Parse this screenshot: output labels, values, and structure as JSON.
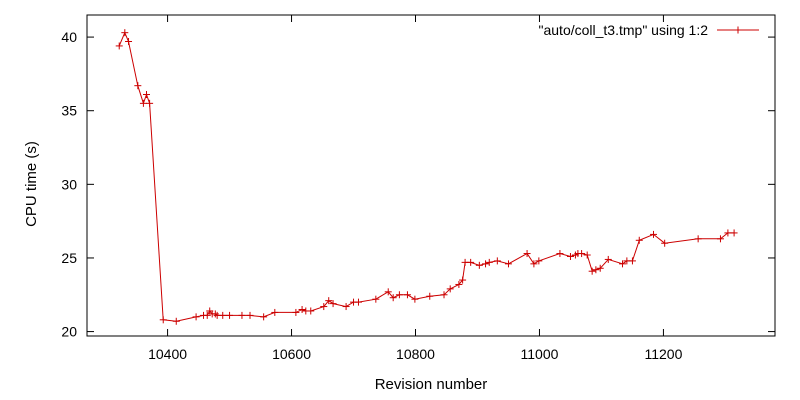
{
  "chart_data": {
    "type": "line",
    "title": "",
    "xlabel": "Revision number",
    "ylabel": "CPU time (s)",
    "xlim": [
      10270,
      11380
    ],
    "ylim": [
      19.7,
      41.5
    ],
    "xticks": [
      10400,
      10600,
      10800,
      11000,
      11200
    ],
    "yticks": [
      20,
      25,
      30,
      35,
      40
    ],
    "grid": false,
    "legend_position": "top-right",
    "color": "#cc0000",
    "marker": "plus",
    "series": [
      {
        "name": "\"auto/coll_t3.tmp\" using 1:2",
        "x": [
          10322,
          10331,
          10337,
          10352,
          10361,
          10366,
          10371,
          10393,
          10414,
          10446,
          10458,
          10464,
          10468,
          10472,
          10477,
          10480,
          10489,
          10500,
          10520,
          10533,
          10555,
          10573,
          10607,
          10617,
          10623,
          10631,
          10652,
          10660,
          10667,
          10688,
          10700,
          10708,
          10736,
          10756,
          10764,
          10774,
          10787,
          10799,
          10823,
          10846,
          10856,
          10870,
          10876,
          10880,
          10889,
          10903,
          10913,
          10919,
          10932,
          10950,
          10980,
          10991,
          10999,
          11033,
          11050,
          11058,
          11062,
          11068,
          11077,
          11085,
          11091,
          11098,
          11111,
          11134,
          11141,
          11150,
          11161,
          11184,
          11202,
          11256,
          11292,
          11304,
          11314
        ],
        "y": [
          39.4,
          40.3,
          39.7,
          36.7,
          35.5,
          36.1,
          35.5,
          20.8,
          20.7,
          21.0,
          21.1,
          21.1,
          21.4,
          21.2,
          21.2,
          21.1,
          21.1,
          21.1,
          21.1,
          21.1,
          21.0,
          21.3,
          21.3,
          21.5,
          21.4,
          21.4,
          21.7,
          22.1,
          21.9,
          21.7,
          22.0,
          22.0,
          22.2,
          22.7,
          22.3,
          22.5,
          22.5,
          22.2,
          22.4,
          22.5,
          22.9,
          23.2,
          23.5,
          24.7,
          24.7,
          24.5,
          24.6,
          24.7,
          24.8,
          24.6,
          25.3,
          24.6,
          24.8,
          25.3,
          25.1,
          25.2,
          25.3,
          25.3,
          25.2,
          24.1,
          24.2,
          24.3,
          24.9,
          24.6,
          24.8,
          24.8,
          26.2,
          26.6,
          26.0,
          26.3,
          26.3,
          26.7,
          26.7
        ]
      }
    ]
  }
}
